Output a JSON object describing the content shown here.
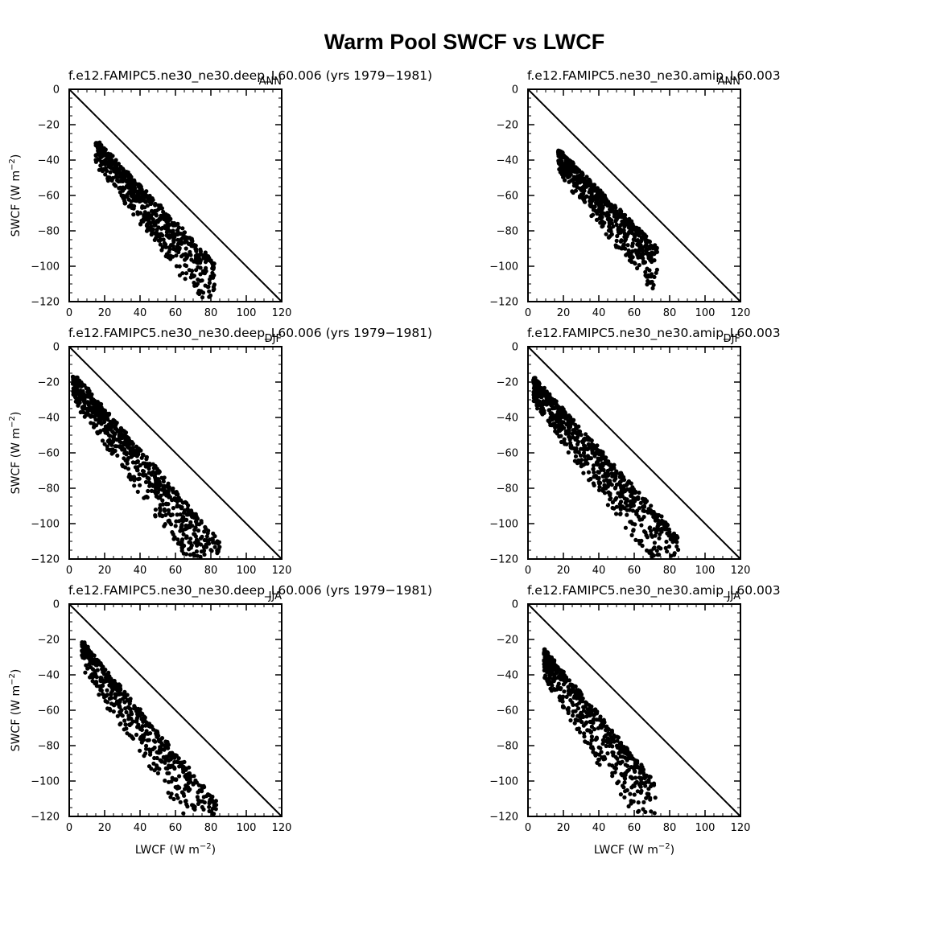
{
  "figure_title": "Warm Pool SWCF vs LWCF",
  "ylabel_base": "SWCF  (W m",
  "xlabel_base": "LWCF  (W m",
  "unit_exponent": "−2",
  "unit_close": ")",
  "chart_data": [
    {
      "id": "p1",
      "type": "scatter",
      "subtitle": "f.e12.FAMIPC5.ne30_ne30.deep_L60.006 (yrs 1979−1981)",
      "season": "ANN",
      "xlim": [
        0,
        120
      ],
      "ylim": [
        -120,
        0
      ],
      "x_ticks": [
        "0",
        "20",
        "40",
        "60",
        "80",
        "100",
        "120"
      ],
      "y_ticks": [
        "−120",
        "−100",
        "−80",
        "−60",
        "−40",
        "−20",
        "0"
      ],
      "reference_line": [
        [
          0,
          0
        ],
        [
          120,
          -120
        ]
      ],
      "cloud": {
        "n": 650,
        "seed": 11,
        "x_range": [
          15,
          82
        ],
        "line": {
          "intercept": -14,
          "slope": -1.05
        },
        "upper_dev": 4,
        "spread": 20,
        "y_max": -30
      }
    },
    {
      "id": "p2",
      "type": "scatter",
      "subtitle": "f.e12.FAMIPC5.ne30_ne30.amip_L60.003",
      "season": "ANN",
      "xlim": [
        0,
        120
      ],
      "ylim": [
        -120,
        0
      ],
      "x_ticks": [
        "0",
        "20",
        "40",
        "60",
        "80",
        "100",
        "120"
      ],
      "y_ticks": [
        "−120",
        "−100",
        "−80",
        "−60",
        "−40",
        "−20",
        "0"
      ],
      "reference_line": [
        [
          0,
          0
        ],
        [
          120,
          -120
        ]
      ],
      "cloud": {
        "n": 600,
        "seed": 23,
        "x_range": [
          17,
          73
        ],
        "line": {
          "intercept": -18,
          "slope": -1.0
        },
        "upper_dev": 3,
        "spread": 18,
        "y_max": -34
      }
    },
    {
      "id": "p3",
      "type": "scatter",
      "subtitle": "f.e12.FAMIPC5.ne30_ne30.deep_L60.006 (yrs 1979−1981)",
      "season": "DJF",
      "xlim": [
        0,
        120
      ],
      "ylim": [
        -120,
        0
      ],
      "x_ticks": [
        "0",
        "20",
        "40",
        "60",
        "80",
        "100",
        "120"
      ],
      "y_ticks": [
        "−120",
        "−100",
        "−80",
        "−60",
        "−40",
        "−20",
        "0"
      ],
      "reference_line": [
        [
          0,
          0
        ],
        [
          120,
          -120
        ]
      ],
      "cloud": {
        "n": 750,
        "seed": 37,
        "x_range": [
          2,
          85
        ],
        "line": {
          "intercept": -14,
          "slope": -1.15
        },
        "upper_dev": 4,
        "spread": 22,
        "y_max": -17
      }
    },
    {
      "id": "p4",
      "type": "scatter",
      "subtitle": "f.e12.FAMIPC5.ne30_ne30.amip_L60.003",
      "season": "DJF",
      "xlim": [
        0,
        120
      ],
      "ylim": [
        -120,
        0
      ],
      "x_ticks": [
        "0",
        "20",
        "40",
        "60",
        "80",
        "100",
        "120"
      ],
      "y_ticks": [
        "−120",
        "−100",
        "−80",
        "−60",
        "−40",
        "−20",
        "0"
      ],
      "reference_line": [
        [
          0,
          0
        ],
        [
          120,
          -120
        ]
      ],
      "cloud": {
        "n": 750,
        "seed": 41,
        "x_range": [
          3,
          85
        ],
        "line": {
          "intercept": -15,
          "slope": -1.1
        },
        "upper_dev": 3,
        "spread": 22,
        "y_max": -17
      }
    },
    {
      "id": "p5",
      "type": "scatter",
      "subtitle": "f.e12.FAMIPC5.ne30_ne30.deep_L60.006 (yrs 1979−1981)",
      "season": "JJA",
      "xlim": [
        0,
        120
      ],
      "ylim": [
        -120,
        0
      ],
      "x_ticks": [
        "0",
        "20",
        "40",
        "60",
        "80",
        "100",
        "120"
      ],
      "y_ticks": [
        "−120",
        "−100",
        "−80",
        "−60",
        "−40",
        "−20",
        "0"
      ],
      "reference_line": [
        [
          0,
          0
        ],
        [
          120,
          -120
        ]
      ],
      "cloud": {
        "n": 550,
        "seed": 53,
        "x_range": [
          7,
          83
        ],
        "line": {
          "intercept": -14,
          "slope": -1.2
        },
        "upper_dev": 4,
        "spread": 22,
        "y_max": -21
      }
    },
    {
      "id": "p6",
      "type": "scatter",
      "subtitle": "f.e12.FAMIPC5.ne30_ne30.amip_L60.003",
      "season": "JJA",
      "xlim": [
        0,
        120
      ],
      "ylim": [
        -120,
        0
      ],
      "x_ticks": [
        "0",
        "20",
        "40",
        "60",
        "80",
        "100",
        "120"
      ],
      "y_ticks": [
        "−120",
        "−100",
        "−80",
        "−60",
        "−40",
        "−20",
        "0"
      ],
      "reference_line": [
        [
          0,
          0
        ],
        [
          120,
          -120
        ]
      ],
      "cloud": {
        "n": 550,
        "seed": 67,
        "x_range": [
          9,
          72
        ],
        "line": {
          "intercept": -16,
          "slope": -1.2
        },
        "upper_dev": 3,
        "spread": 24,
        "y_max": -24
      }
    }
  ]
}
